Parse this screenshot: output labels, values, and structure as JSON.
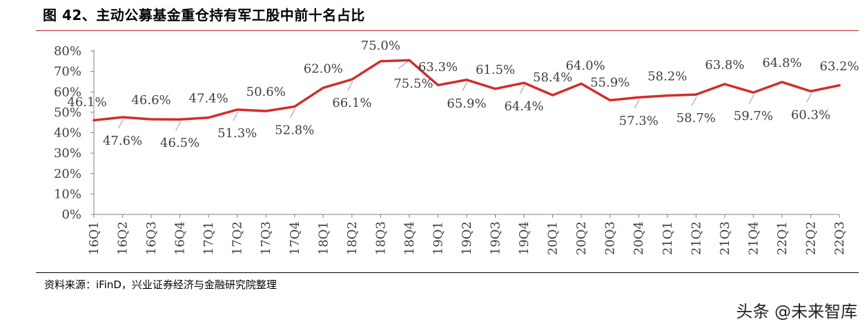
{
  "header": {
    "title": "图 42、主动公募基金重仓持有军工股中前十名占比"
  },
  "footer": {
    "source": "资料来源：iFinD，兴业证券经济与金融研究院整理",
    "watermark": "头条 @未来智库"
  },
  "colors": {
    "line": "#d42b2b",
    "axis": "#808080",
    "leader": "#a6a6a6",
    "title_rule": "#b02020"
  },
  "chart_data": {
    "type": "line",
    "title": "图 42、主动公募基金重仓持有军工股中前十名占比",
    "xlabel": "",
    "ylabel": "",
    "ylim": [
      0,
      80
    ],
    "yticks": [
      "0%",
      "10%",
      "20%",
      "30%",
      "40%",
      "50%",
      "60%",
      "70%",
      "80%"
    ],
    "grid": false,
    "legend": "none",
    "categories": [
      "16Q1",
      "16Q2",
      "16Q3",
      "16Q4",
      "17Q1",
      "17Q2",
      "17Q3",
      "17Q4",
      "18Q1",
      "18Q2",
      "18Q3",
      "18Q4",
      "19Q1",
      "19Q2",
      "19Q3",
      "19Q4",
      "20Q1",
      "20Q2",
      "20Q3",
      "20Q4",
      "21Q1",
      "21Q2",
      "21Q3",
      "21Q4",
      "22Q1",
      "22Q2",
      "22Q3"
    ],
    "series": [
      {
        "values": [
          46.1,
          47.6,
          46.6,
          46.5,
          47.4,
          51.3,
          50.6,
          52.8,
          62.0,
          66.1,
          75.0,
          75.5,
          63.3,
          65.9,
          61.5,
          64.4,
          58.4,
          64.0,
          55.9,
          57.3,
          58.2,
          58.7,
          63.8,
          59.7,
          64.8,
          60.3,
          63.2
        ],
        "labels": [
          "46.1%",
          "47.6%",
          "46.6%",
          "46.5%",
          "47.4%",
          "51.3%",
          "50.6%",
          "52.8%",
          "62.0%",
          "66.1%",
          "75.0%",
          "75.5%",
          "63.3%",
          "65.9%",
          "61.5%",
          "64.4%",
          "58.4%",
          "64.0%",
          "55.9%",
          "57.3%",
          "58.2%",
          "58.7%",
          "63.8%",
          "59.7%",
          "64.8%",
          "60.3%",
          "63.2%"
        ]
      }
    ]
  }
}
